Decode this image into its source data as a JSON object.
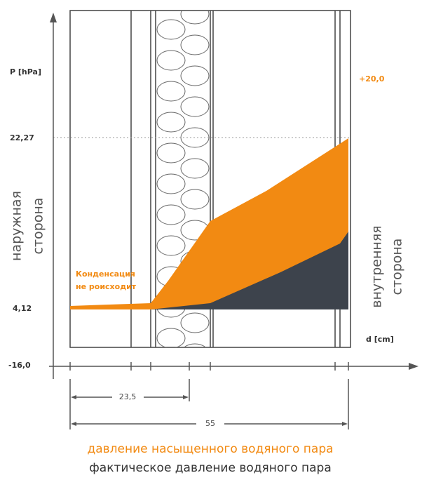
{
  "axis": {
    "y_label": "P [hPa]",
    "x_label": "d [cm]",
    "ticks": [
      "22,27",
      "4,12",
      "-16,0"
    ]
  },
  "inside_temperature": "+20,0",
  "sides": {
    "outside": [
      "наружная",
      "сторона"
    ],
    "inside": [
      "внутренняя",
      "сторона"
    ]
  },
  "note": [
    "Конденсация",
    "не роисходит"
  ],
  "dimensions": [
    "23,5",
    "55"
  ],
  "legend": [
    "давление насыщенного водяного пара",
    "фактическое давление водяного пара"
  ]
}
